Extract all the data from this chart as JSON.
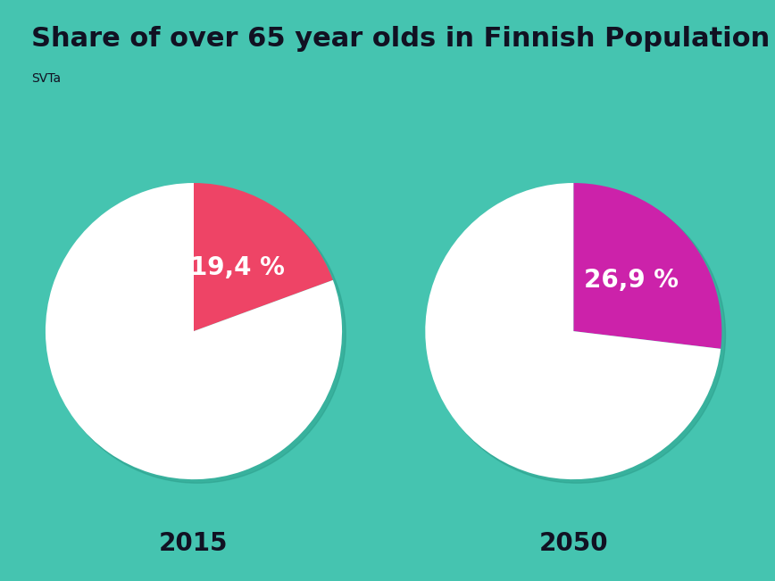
{
  "title": "Share of over 65 year olds in Finnish Population",
  "subtitle": "SVTa",
  "background_color": "#45C4B0",
  "pie1": {
    "value": 19.4,
    "label": "19,4 %",
    "year": "2015",
    "color": "#EE4466",
    "white_color": "#FFFFFF"
  },
  "pie2": {
    "value": 26.9,
    "label": "26,9 %",
    "year": "2050",
    "color": "#CC22AA",
    "white_color": "#FFFFFF"
  },
  "title_fontsize": 22,
  "subtitle_fontsize": 10,
  "label_fontsize": 20,
  "year_fontsize": 20,
  "title_color": "#111122",
  "year_color": "#111122"
}
